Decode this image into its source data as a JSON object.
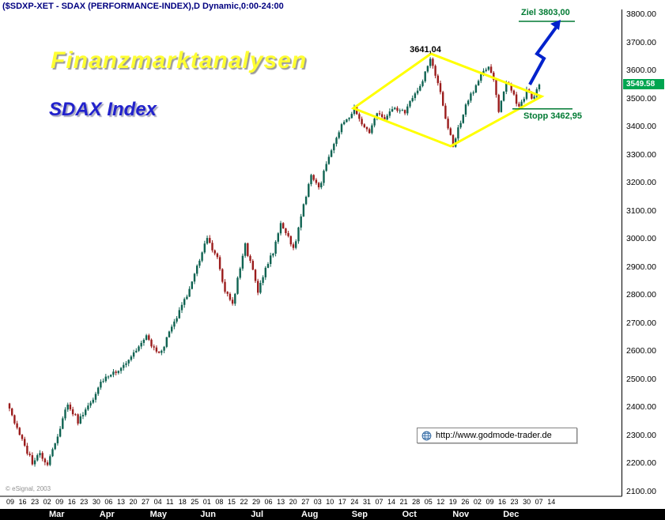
{
  "title": "($SDXP-XET - SDAX (PERFORMANCE-INDEX),D Dynamic,0:00-24:00",
  "watermarks": {
    "line1": "Finanzmarktanalysen",
    "line2": "SDAX Index"
  },
  "annotations": {
    "peak_label": "3641,04",
    "target_label": "Ziel 3803,00",
    "stop_label": "Stopp 3462,95",
    "price_tag": "3549.58",
    "copyright": "© eSignal, 2003",
    "url_box": "http://www.godmode-trader.de"
  },
  "colors": {
    "title_text": "#000080",
    "watermark_yellow": "#ffff33",
    "watermark_blue": "#2222cc",
    "annotation_green": "#007a33",
    "diamond_yellow": "#ffff00",
    "arrow_blue": "#0022cc",
    "price_tag_bg": "#00a550",
    "candle_up": "#0f6352",
    "candle_down": "#9b1c1c",
    "axis_line": "#000000"
  },
  "axis": {
    "price_ticks": [
      "3800.00",
      "3700.00",
      "3600.00",
      "3500.00",
      "3400.00",
      "3300.00",
      "3200.00",
      "3100.00",
      "3000.00",
      "2900.00",
      "2800.00",
      "2700.00",
      "2600.00",
      "2500.00",
      "2400.00",
      "2300.00",
      "2200.00",
      "2100.00"
    ],
    "date_ticks": [
      "09",
      "16",
      "23",
      "02",
      "09",
      "16",
      "23",
      "30",
      "06",
      "13",
      "20",
      "27",
      "04",
      "11",
      "18",
      "25",
      "01",
      "08",
      "15",
      "22",
      "29",
      "06",
      "13",
      "20",
      "27",
      "03",
      "10",
      "17",
      "24",
      "31",
      "07",
      "14",
      "21",
      "28",
      "05",
      "12",
      "19",
      "26",
      "02",
      "09",
      "16",
      "23",
      "30",
      "07",
      "14"
    ],
    "months": [
      "Mar",
      "Apr",
      "May",
      "Jun",
      "Jul",
      "Aug",
      "Sep",
      "Oct",
      "Nov",
      "Dec"
    ]
  },
  "chart_data": {
    "type": "candlestick",
    "instrument": "SDAX (PERFORMANCE-INDEX)",
    "interval": "D",
    "session": "0:00-24:00",
    "ylim": [
      2100,
      3800
    ],
    "y_tick_step": 100,
    "x_months": [
      "Mar",
      "Apr",
      "May",
      "Jun",
      "Jul",
      "Aug",
      "Sep",
      "Oct",
      "Nov",
      "Dec"
    ],
    "bar_count": 210,
    "last_price": 3549.58,
    "peak_price": 3641.04,
    "peak_index": 166,
    "target_price": 3803.0,
    "stop_price": 3462.95,
    "close_keypoints": [
      [
        0,
        2400
      ],
      [
        3,
        2320
      ],
      [
        6,
        2260
      ],
      [
        9,
        2205
      ],
      [
        12,
        2235
      ],
      [
        15,
        2200
      ],
      [
        20,
        2330
      ],
      [
        23,
        2415
      ],
      [
        27,
        2350
      ],
      [
        31,
        2400
      ],
      [
        37,
        2500
      ],
      [
        42,
        2530
      ],
      [
        46,
        2560
      ],
      [
        54,
        2650
      ],
      [
        59,
        2585
      ],
      [
        65,
        2700
      ],
      [
        69,
        2780
      ],
      [
        73,
        2870
      ],
      [
        78,
        3005
      ],
      [
        82,
        2930
      ],
      [
        85,
        2810
      ],
      [
        88,
        2770
      ],
      [
        93,
        2980
      ],
      [
        98,
        2815
      ],
      [
        101,
        2900
      ],
      [
        104,
        2950
      ],
      [
        107,
        3055
      ],
      [
        110,
        3010
      ],
      [
        112,
        2960
      ],
      [
        116,
        3120
      ],
      [
        119,
        3230
      ],
      [
        122,
        3180
      ],
      [
        126,
        3290
      ],
      [
        129,
        3355
      ],
      [
        131,
        3400
      ],
      [
        134,
        3430
      ],
      [
        136,
        3465
      ],
      [
        139,
        3400
      ],
      [
        142,
        3380
      ],
      [
        145,
        3445
      ],
      [
        148,
        3420
      ],
      [
        152,
        3470
      ],
      [
        156,
        3450
      ],
      [
        160,
        3520
      ],
      [
        163,
        3560
      ],
      [
        166,
        3641
      ],
      [
        169,
        3560
      ],
      [
        172,
        3430
      ],
      [
        175,
        3330
      ],
      [
        178,
        3420
      ],
      [
        181,
        3500
      ],
      [
        184,
        3545
      ],
      [
        187,
        3600
      ],
      [
        189,
        3610
      ],
      [
        191,
        3560
      ],
      [
        193,
        3460
      ],
      [
        196,
        3560
      ],
      [
        198,
        3530
      ],
      [
        201,
        3470
      ],
      [
        204,
        3525
      ],
      [
        207,
        3500
      ],
      [
        209,
        3549.58
      ]
    ],
    "jitter_amplitude": 9,
    "jitter_seed": 3
  }
}
